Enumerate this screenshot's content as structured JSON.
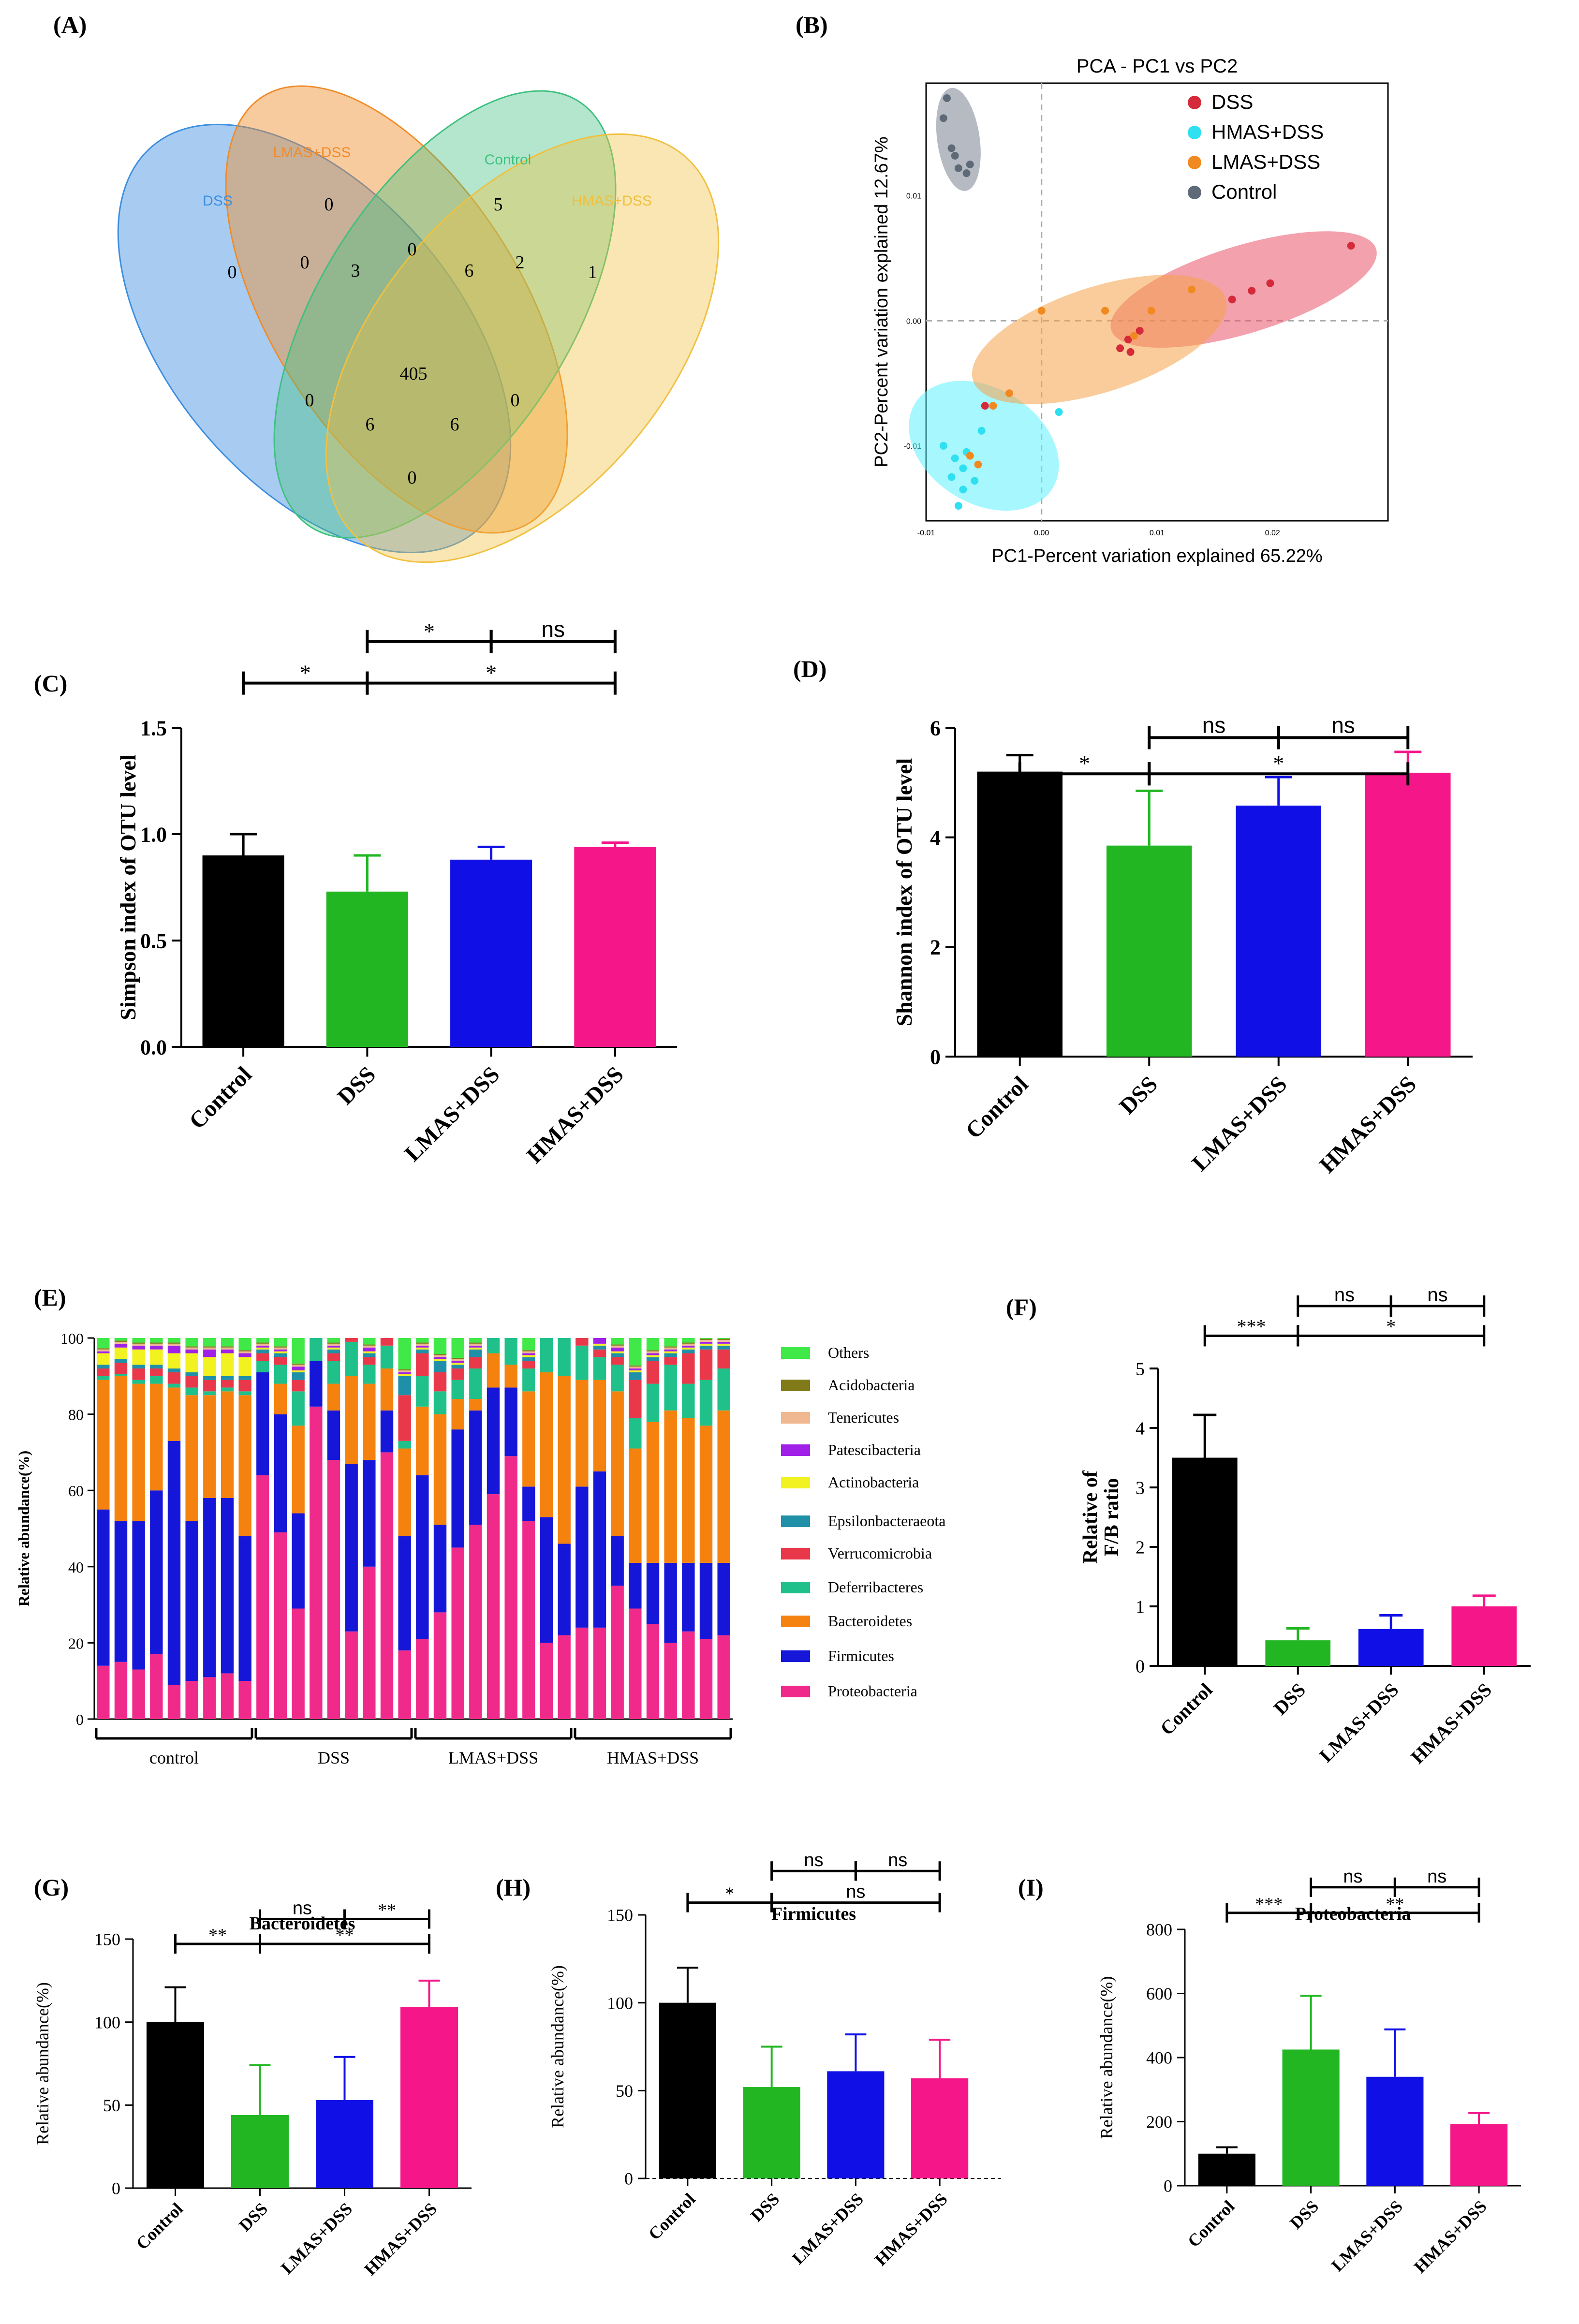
{
  "panels": {
    "A": "(A)",
    "B": "(B)",
    "C": "(C)",
    "D": "(D)",
    "E": "(E)",
    "F": "(F)",
    "G": "(G)",
    "H": "(H)",
    "I": "(I)"
  },
  "venn": {
    "sets": [
      {
        "name": "DSS",
        "color": "#3d8fe0"
      },
      {
        "name": "LMAS+DSS",
        "color": "#f08c2a"
      },
      {
        "name": "Control",
        "color": "#40c080"
      },
      {
        "name": "HMAS+DSS",
        "color": "#f0c040"
      }
    ],
    "counts": {
      "dss": "0",
      "lmas": "0",
      "control": "5",
      "hmas": "1",
      "dss_lmas": "0",
      "lmas_control": "0",
      "control_hmas": "2",
      "dss_lmas_control": "3",
      "lmas_control_hmas": "6",
      "core": "405",
      "dss_control": "0",
      "lmas_hmas": "0",
      "dss_control_hmas": "6",
      "dss_lmas_hmas": "6",
      "dss_hmas": "0"
    }
  },
  "chart_data": [
    {
      "id": "B",
      "type": "scatter",
      "title": "PCA - PC1 vs PC2",
      "xlabel": "PC1-Percent variation explained 65.22%",
      "ylabel": "PC2-Percent variation explained 12.67%",
      "xlim": [
        -0.01,
        0.03
      ],
      "ylim": [
        -0.016,
        0.019
      ],
      "xticks": [
        {
          "v": -0.01,
          "label": "-0.01"
        },
        {
          "v": 0,
          "label": "0.00"
        },
        {
          "v": 0.01,
          "label": "0.01"
        },
        {
          "v": 0.02,
          "label": "0.02"
        }
      ],
      "yticks": [
        {
          "v": -0.01,
          "label": "-0.01"
        },
        {
          "v": 0,
          "label": "0.00"
        },
        {
          "v": 0.01,
          "label": "0.01"
        }
      ],
      "series": [
        {
          "name": "DSS",
          "color": "#d42a3a",
          "ellipse_color": "#e8546a",
          "ellipse": {
            "cx": 0.0175,
            "cy": 0.0025,
            "rx": 0.012,
            "ry": 0.0035,
            "angle": 17
          },
          "points": [
            [
              0.0268,
              0.006
            ],
            [
              0.0198,
              0.003
            ],
            [
              0.0182,
              0.0024
            ],
            [
              0.0165,
              0.0017
            ],
            [
              0.0085,
              -0.0008
            ],
            [
              0.0075,
              -0.0015
            ],
            [
              0.0068,
              -0.0022
            ],
            [
              0.0077,
              -0.0025
            ],
            [
              -0.0049,
              -0.0068
            ]
          ]
        },
        {
          "name": "HMAS+DSS",
          "color": "#2ee0f0",
          "ellipse_color": "#5ff0ff",
          "ellipse": {
            "cx": -0.005,
            "cy": -0.01,
            "rx": 0.007,
            "ry": 0.0046,
            "angle": -32
          },
          "points": [
            [
              -0.0085,
              -0.01
            ],
            [
              -0.0075,
              -0.011
            ],
            [
              -0.0065,
              -0.0105
            ],
            [
              -0.0068,
              -0.0118
            ],
            [
              -0.0058,
              -0.0128
            ],
            [
              -0.0068,
              -0.0135
            ],
            [
              -0.0072,
              -0.0148
            ],
            [
              -0.0078,
              -0.0125
            ],
            [
              -0.0052,
              -0.0088
            ],
            [
              0.0015,
              -0.0073
            ]
          ]
        },
        {
          "name": "LMAS+DSS",
          "color": "#f08a20",
          "ellipse_color": "#f6a24a",
          "ellipse": {
            "cx": 0.005,
            "cy": -0.0015,
            "rx": 0.0115,
            "ry": 0.0042,
            "angle": 18
          },
          "points": [
            [
              0.013,
              0.0025
            ],
            [
              0.0095,
              0.0008
            ],
            [
              0.0055,
              0.0008
            ],
            [
              0.0,
              0.0008
            ],
            [
              0.008,
              -0.0012
            ],
            [
              -0.0042,
              -0.0068
            ],
            [
              -0.0028,
              -0.0058
            ],
            [
              -0.0062,
              -0.0108
            ],
            [
              -0.0055,
              -0.0115
            ]
          ]
        },
        {
          "name": "Control",
          "color": "#5e6a78",
          "ellipse_color": "#7a8492",
          "ellipse": {
            "cx": -0.0072,
            "cy": 0.0145,
            "rx": 0.0045,
            "ry": 0.0017,
            "angle": -82
          },
          "points": [
            [
              -0.0082,
              0.0178
            ],
            [
              -0.0085,
              0.0162
            ],
            [
              -0.0078,
              0.0138
            ],
            [
              -0.0075,
              0.0132
            ],
            [
              -0.0072,
              0.0122
            ],
            [
              -0.0065,
              0.0118
            ],
            [
              -0.0062,
              0.0125
            ]
          ]
        }
      ]
    },
    {
      "id": "C",
      "type": "bar",
      "categories": [
        "Control",
        "DSS",
        "LMAS+DSS",
        "HMAS+DSS"
      ],
      "values": [
        0.9,
        0.73,
        0.88,
        0.94
      ],
      "errors": [
        0.1,
        0.17,
        0.06,
        0.02
      ],
      "colors": [
        "#000000",
        "#22b722",
        "#1010e6",
        "#f5168a"
      ],
      "ylabel": "Simpson index of OTU level",
      "ylim": [
        0,
        1.5
      ],
      "yticks": [
        {
          "v": 0,
          "label": "0.0"
        },
        {
          "v": 0.5,
          "label": "0.5"
        },
        {
          "v": 1,
          "label": "1.0"
        },
        {
          "v": 1.5,
          "label": "1.5"
        }
      ],
      "annotations": [
        {
          "from": 0,
          "to": 1,
          "level": 0.14,
          "text": "*"
        },
        {
          "from": 1,
          "to": 3,
          "level": 0.14,
          "text": "*"
        },
        {
          "from": 1,
          "to": 2,
          "level": 0.27,
          "text": "*"
        },
        {
          "from": 2,
          "to": 3,
          "level": 0.27,
          "text": "ns"
        }
      ]
    },
    {
      "id": "D",
      "type": "bar",
      "categories": [
        "Control",
        "DSS",
        "LMAS+DSS",
        "HMAS+DSS"
      ],
      "values": [
        5.2,
        3.85,
        4.58,
        5.18
      ],
      "errors": [
        0.3,
        1.0,
        0.52,
        0.38
      ],
      "colors": [
        "#000000",
        "#22b722",
        "#1010e6",
        "#f5168a"
      ],
      "ylabel": "Shannon index of OTU level",
      "ylim": [
        0,
        6
      ],
      "yticks": [
        {
          "v": 0,
          "label": "0"
        },
        {
          "v": 2,
          "label": "2"
        },
        {
          "v": 4,
          "label": "4"
        },
        {
          "v": 6,
          "label": "6"
        }
      ],
      "annotations": [
        {
          "from": 0,
          "to": 1,
          "level": -0.14,
          "text": "*"
        },
        {
          "from": 1,
          "to": 3,
          "level": -0.14,
          "text": "*"
        },
        {
          "from": 1,
          "to": 2,
          "level": -0.03,
          "text": "ns"
        },
        {
          "from": 2,
          "to": 3,
          "level": -0.03,
          "text": "ns"
        }
      ]
    },
    {
      "id": "E",
      "type": "bar",
      "stacked": true,
      "ylabel": "Relative abundance(%)",
      "ylim": [
        0,
        100
      ],
      "yticks": [
        {
          "v": 0,
          "label": "0"
        },
        {
          "v": 20,
          "label": "20"
        },
        {
          "v": 40,
          "label": "40"
        },
        {
          "v": 60,
          "label": "60"
        },
        {
          "v": 80,
          "label": "80"
        },
        {
          "v": 100,
          "label": "100"
        }
      ],
      "legend": [
        "Others",
        "Acidobacteria",
        "Tenericutes",
        "Patescibacteria",
        "Actinobacteria",
        "Epsilonbacteraeota",
        "Verrucomicrobia",
        "Deferribacteres",
        "Bacteroidetes",
        "Firmicutes",
        "Proteobacteria"
      ],
      "series_colors": {
        "Proteobacteria": "#f02a8a",
        "Firmicutes": "#1616d8",
        "Bacteroidetes": "#f5820f",
        "Deferribacteres": "#20c08a",
        "Verrucomicrobia": "#e8384a",
        "Epsilonbacteraeota": "#2090a8",
        "Actinobacteria": "#f2f220",
        "Patescibacteria": "#a020e8",
        "Tenericutes": "#f0b890",
        "Acidobacteria": "#807a18",
        "Others": "#40e848"
      },
      "groups": [
        {
          "name": "control",
          "from": 0,
          "to": 8
        },
        {
          "name": "DSS",
          "from": 9,
          "to": 17
        },
        {
          "name": "LMAS+DSS",
          "from": 18,
          "to": 26
        },
        {
          "name": "HMAS+DSS",
          "from": 27,
          "to": 35
        }
      ],
      "proteobacteria": [
        14,
        15,
        13,
        17,
        9,
        10,
        11,
        12,
        10,
        64,
        49,
        29,
        82,
        68,
        23,
        40,
        70,
        18,
        21,
        28,
        45,
        51,
        59,
        69,
        52,
        20,
        22,
        24,
        24,
        35,
        29,
        25,
        20,
        23,
        21,
        22
      ],
      "firmicutes": [
        41,
        37,
        39,
        43,
        64,
        42,
        47,
        46,
        38,
        27,
        31,
        25,
        12,
        13,
        44,
        28,
        11,
        30,
        43,
        23,
        31,
        30,
        28,
        18,
        9,
        33,
        24,
        37,
        41,
        13,
        12,
        16,
        21,
        18,
        20,
        19
      ],
      "bacteroidetes": [
        34,
        38,
        36,
        28,
        14,
        33,
        27,
        28,
        37,
        0,
        8,
        23,
        0,
        7,
        23,
        20,
        11,
        23,
        18,
        29,
        8,
        3,
        9,
        6,
        25,
        38,
        44,
        28,
        24,
        38,
        30,
        37,
        40,
        38,
        36,
        40
      ]
    },
    {
      "id": "F",
      "type": "bar",
      "categories": [
        "Control",
        "DSS",
        "LMAS+DSS",
        "HMAS+DSS"
      ],
      "values": [
        3.5,
        0.43,
        0.62,
        1.0
      ],
      "errors": [
        0.72,
        0.2,
        0.23,
        0.18
      ],
      "colors": [
        "#000000",
        "#22b722",
        "#1010e6",
        "#f5168a"
      ],
      "ylabel": "Relative of F/B ratio",
      "ylim": [
        0,
        5
      ],
      "yticks": [
        {
          "v": 0,
          "label": "0"
        },
        {
          "v": 1,
          "label": "1"
        },
        {
          "v": 2,
          "label": "2"
        },
        {
          "v": 3,
          "label": "3"
        },
        {
          "v": 4,
          "label": "4"
        },
        {
          "v": 5,
          "label": "5"
        }
      ],
      "annotations": [
        {
          "from": 0,
          "to": 1,
          "level": 0.11,
          "text": "***"
        },
        {
          "from": 1,
          "to": 3,
          "level": 0.11,
          "text": "*"
        },
        {
          "from": 1,
          "to": 2,
          "level": 0.21,
          "text": "ns"
        },
        {
          "from": 2,
          "to": 3,
          "level": 0.21,
          "text": "ns"
        }
      ]
    },
    {
      "id": "G",
      "type": "bar",
      "title": "Bacteroidetes",
      "categories": [
        "Control",
        "DSS",
        "LMAS+DSS",
        "HMAS+DSS"
      ],
      "values": [
        100,
        44,
        53,
        109
      ],
      "errors": [
        21,
        30,
        26,
        16
      ],
      "colors": [
        "#000000",
        "#22b722",
        "#1010e6",
        "#f5168a"
      ],
      "ylabel": "Relative abundance(%)",
      "ylim": [
        0,
        150
      ],
      "yticks": [
        {
          "v": 0,
          "label": "0"
        },
        {
          "v": 50,
          "label": "50"
        },
        {
          "v": 100,
          "label": "100"
        },
        {
          "v": 150,
          "label": "150"
        }
      ],
      "annotations": [
        {
          "from": 0,
          "to": 1,
          "level": 0.0,
          "text": "**"
        },
        {
          "from": 1,
          "to": 3,
          "level": 0.0,
          "text": "**"
        },
        {
          "from": 1,
          "to": 2,
          "level": 0.1,
          "text": "ns"
        },
        {
          "from": 2,
          "to": 3,
          "level": 0.1,
          "text": "**"
        }
      ]
    },
    {
      "id": "H",
      "type": "bar",
      "title": "Firmicutes",
      "categories": [
        "Control",
        "DSS",
        "LMAS+DSS",
        "HMAS+DSS"
      ],
      "values": [
        100,
        52,
        61,
        57
      ],
      "errors": [
        20,
        23,
        21,
        22
      ],
      "colors": [
        "#000000",
        "#22b722",
        "#1010e6",
        "#f5168a"
      ],
      "ylabel": "Relative abundance(%)",
      "ylim": [
        0,
        150
      ],
      "dashed_zero": true,
      "yticks": [
        {
          "v": 0,
          "label": "0"
        },
        {
          "v": 50,
          "label": "50"
        },
        {
          "v": 100,
          "label": "100"
        },
        {
          "v": 150,
          "label": "150"
        }
      ],
      "annotations": [
        {
          "from": 0,
          "to": 1,
          "level": 0.12,
          "text": "*"
        },
        {
          "from": 1,
          "to": 3,
          "level": 0.12,
          "text": "ns"
        },
        {
          "from": 1,
          "to": 2,
          "level": 0.24,
          "text": "ns"
        },
        {
          "from": 2,
          "to": 3,
          "level": 0.24,
          "text": "ns"
        }
      ]
    },
    {
      "id": "I",
      "type": "bar",
      "title": "Proteobacteria",
      "categories": [
        "Control",
        "DSS",
        "LMAS+DSS",
        "HMAS+DSS"
      ],
      "values": [
        100,
        425,
        340,
        192
      ],
      "errors": [
        20,
        168,
        148,
        35
      ],
      "colors": [
        "#000000",
        "#22b722",
        "#1010e6",
        "#f5168a"
      ],
      "ylabel": "Relative abundance(%)",
      "ylim": [
        0,
        800
      ],
      "yticks": [
        {
          "v": 0,
          "label": "0"
        },
        {
          "v": 200,
          "label": "200"
        },
        {
          "v": 400,
          "label": "400"
        },
        {
          "v": 600,
          "label": "600"
        },
        {
          "v": 800,
          "label": "800"
        }
      ],
      "annotations": [
        {
          "from": 0,
          "to": 1,
          "level": 0.14,
          "text": "***"
        },
        {
          "from": 1,
          "to": 3,
          "level": 0.14,
          "text": "**"
        },
        {
          "from": 1,
          "to": 2,
          "level": 0.24,
          "text": "ns"
        },
        {
          "from": 2,
          "to": 3,
          "level": 0.24,
          "text": "ns"
        }
      ]
    }
  ]
}
